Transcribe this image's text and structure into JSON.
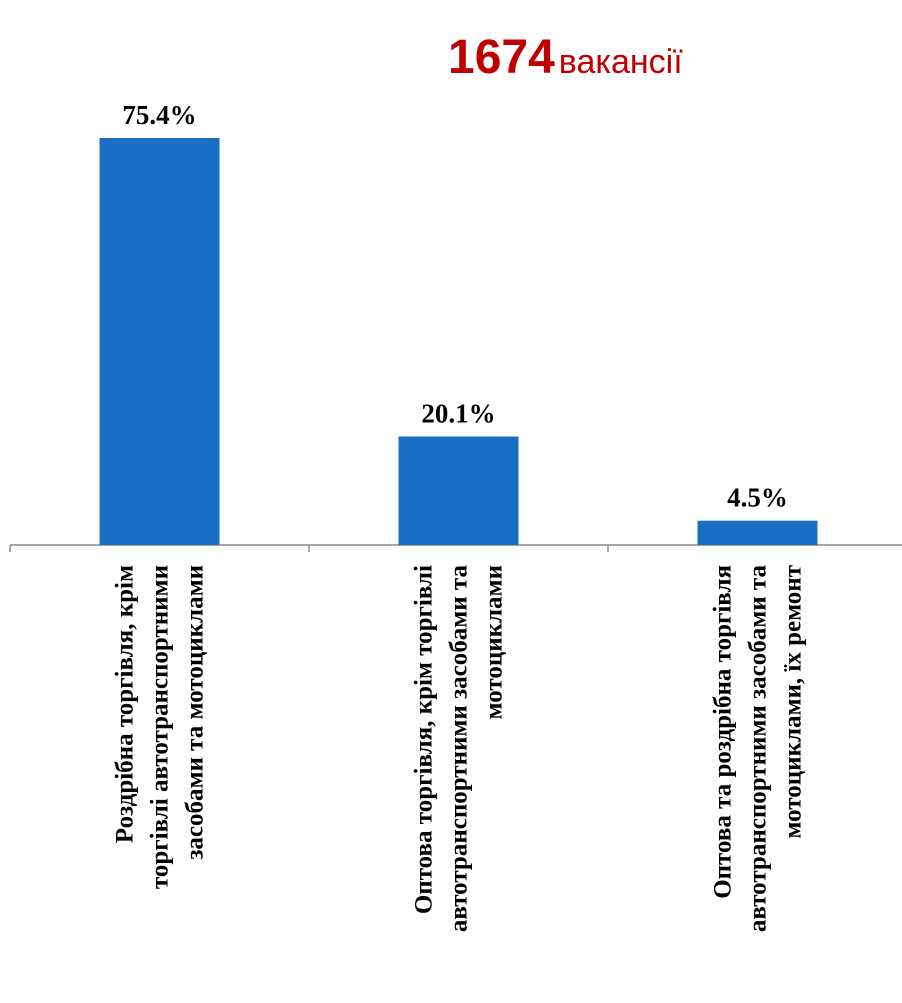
{
  "headline": {
    "number": "1674",
    "unit": "вакансії",
    "color": "#c00000"
  },
  "chart_data": {
    "type": "bar",
    "categories": [
      [
        "Роздрібна торгівля, крім",
        "торгівлі автотранспортними",
        "засобами та мотоциклами"
      ],
      [
        "Оптова торгівля, крім торгівлі",
        "автотранспортними засобами та",
        "мотоциклами"
      ],
      [
        "Оптова та роздрібна торгівля",
        "автотранспортними засобами та",
        "мотоциклами, їх ремонт"
      ]
    ],
    "values": [
      75.4,
      20.1,
      4.5
    ],
    "value_labels": [
      "75.4%",
      "20.1%",
      "4.5%"
    ],
    "unit": "%",
    "ylim": [
      0,
      80
    ],
    "bar_color": "#1a6fc4",
    "grid": false,
    "legend": "none"
  }
}
